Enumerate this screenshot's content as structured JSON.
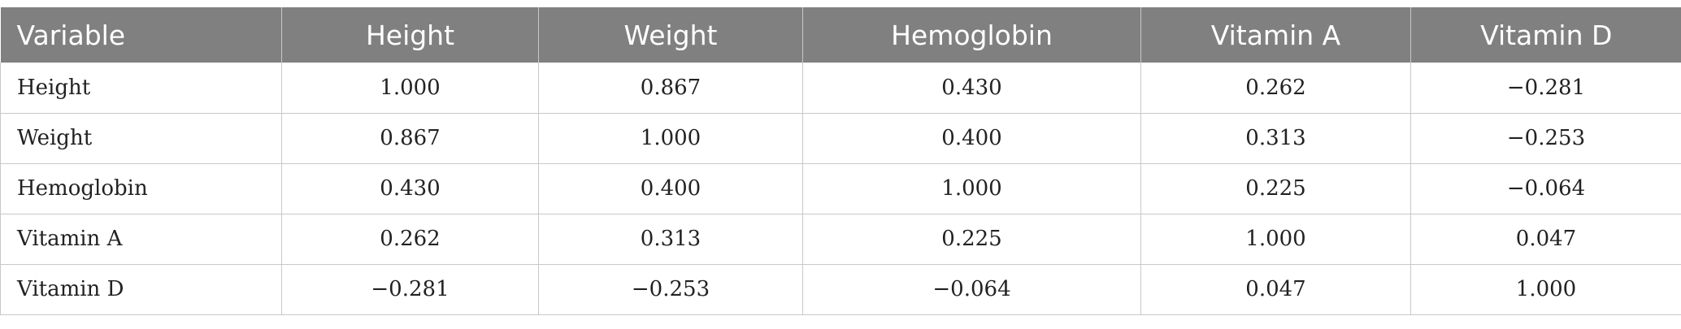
{
  "table": {
    "headers": [
      "Variable",
      "Height",
      "Weight",
      "Hemoglobin",
      "Vitamin A",
      "Vitamin D"
    ],
    "rows": [
      [
        "Height",
        "1.000",
        "0.867",
        "0.430",
        "0.262",
        "−0.281"
      ],
      [
        "Weight",
        "0.867",
        "1.000",
        "0.400",
        "0.313",
        "−0.253"
      ],
      [
        "Hemoglobin",
        "0.430",
        "0.400",
        "1.000",
        "0.225",
        "−0.064"
      ],
      [
        "Vitamin A",
        "0.262",
        "0.313",
        "0.225",
        "1.000",
        "0.047"
      ],
      [
        "Vitamin D",
        "−0.281",
        "−0.253",
        "−0.064",
        "0.047",
        "1.000"
      ]
    ]
  },
  "colors": {
    "header_background": "#808080",
    "header_text": "#ffffff",
    "grid_lines": "#c8c8c8"
  }
}
